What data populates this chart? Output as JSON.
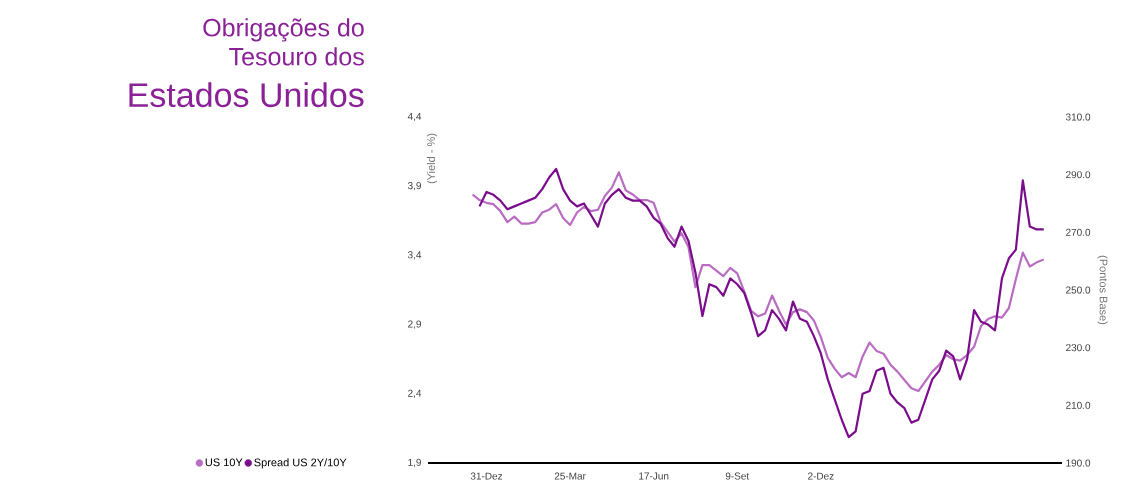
{
  "chart_data": {
    "type": "line",
    "title": "Obrigações do Tesouro dos",
    "subtitle": "Estados Unidos",
    "ylabel": "(Yield - %)",
    "y2label": "(Pontos Base)",
    "categories": [
      null,
      null,
      "31-Dez",
      null,
      null,
      null,
      null,
      null,
      null,
      null,
      null,
      null,
      null,
      null,
      "25-Mar",
      null,
      null,
      null,
      null,
      null,
      null,
      null,
      null,
      null,
      null,
      null,
      "17-Jun",
      null,
      null,
      null,
      null,
      null,
      null,
      null,
      null,
      null,
      null,
      null,
      "9-Set",
      null,
      null,
      null,
      null,
      null,
      null,
      null,
      null,
      null,
      null,
      null,
      "2-Dez",
      null,
      null,
      null,
      null,
      null,
      null,
      null,
      null,
      null,
      null,
      null,
      null,
      null,
      null,
      null,
      null,
      null,
      null,
      null,
      null,
      null,
      null,
      null,
      null,
      null,
      null,
      null,
      null,
      null,
      null,
      null,
      null
    ],
    "ylim": [
      1.9,
      4.4
    ],
    "yticks": [
      {
        "value": 1.9,
        "label": "1,9"
      },
      {
        "value": 2.4,
        "label": "2,4"
      },
      {
        "value": 2.9,
        "label": "2,9"
      },
      {
        "value": 3.4,
        "label": "3,4"
      },
      {
        "value": 3.9,
        "label": "3,9"
      },
      {
        "value": 4.4,
        "label": "4,4"
      }
    ],
    "y2lim": [
      190,
      310
    ],
    "y2ticks": [
      {
        "value": 190,
        "label": "190.0"
      },
      {
        "value": 210,
        "label": "210.0"
      },
      {
        "value": 230,
        "label": "230.0"
      },
      {
        "value": 250,
        "label": "250.0"
      },
      {
        "value": 270,
        "label": "270.0"
      },
      {
        "value": 290,
        "label": "290.0"
      },
      {
        "value": 310,
        "label": "310.0"
      }
    ],
    "legend": "bottom left",
    "series": [
      {
        "name": "US 10Y",
        "color": "#b96cc2",
        "values": [
          3.84,
          3.8,
          3.78,
          3.77,
          3.72,
          3.64,
          3.68,
          3.63,
          3.63,
          3.64,
          3.71,
          3.73,
          3.77,
          3.67,
          3.62,
          3.71,
          3.75,
          3.72,
          3.73,
          3.83,
          3.89,
          4.0,
          3.87,
          3.84,
          3.8,
          3.8,
          3.78,
          3.64,
          3.57,
          3.5,
          3.56,
          3.46,
          3.17,
          3.33,
          3.33,
          3.29,
          3.25,
          3.31,
          3.27,
          3.14,
          3.0,
          2.96,
          2.98,
          3.11,
          3.0,
          2.9,
          2.99,
          3.01,
          2.99,
          2.93,
          2.81,
          2.66,
          2.58,
          2.52,
          2.55,
          2.52,
          2.67,
          2.77,
          2.71,
          2.69,
          2.61,
          2.56,
          2.5,
          2.44,
          2.42,
          2.49,
          2.56,
          2.61,
          2.68,
          2.65,
          2.64,
          2.68,
          2.74,
          2.89,
          2.94,
          2.96,
          2.95,
          3.02,
          3.23,
          3.42,
          3.32,
          3.35,
          3.37
        ]
      },
      {
        "name": "Spread US 2Y/10Y",
        "color": "#7b0d8c",
        "axis": "y2",
        "values": [
          null,
          279,
          284,
          283,
          281,
          278,
          279,
          280,
          281,
          282,
          285,
          289,
          292,
          285,
          281,
          279,
          280,
          276,
          272,
          280,
          283,
          285,
          282,
          281,
          281,
          279,
          275,
          273,
          268,
          265,
          272,
          267,
          256,
          241,
          252,
          251,
          248,
          254,
          252,
          249,
          242,
          234,
          236,
          243,
          240,
          236,
          246,
          240,
          239,
          234,
          228,
          219,
          212,
          205,
          199,
          201,
          214,
          215,
          222,
          223,
          214,
          211,
          209,
          204,
          205,
          212,
          219,
          222,
          229,
          227,
          219,
          226,
          243,
          239,
          238,
          236,
          254,
          261,
          264,
          288,
          272,
          271,
          271
        ]
      }
    ]
  }
}
